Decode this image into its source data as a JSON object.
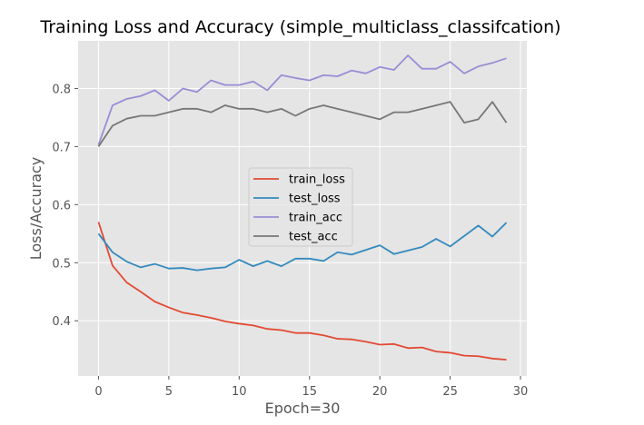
{
  "chart_data": {
    "type": "line",
    "title": "Training Loss and Accuracy (simple_multiclass_classifcation)",
    "xlabel": "Epoch=30",
    "ylabel": "Loss/Accuracy",
    "xlim": [
      -1.45,
      30.45
    ],
    "ylim": [
      0.305,
      0.882
    ],
    "xticks": [
      0,
      5,
      10,
      15,
      20,
      25,
      30
    ],
    "yticks": [
      0.4,
      0.5,
      0.6,
      0.7,
      0.8
    ],
    "grid": true,
    "legend_position": "center",
    "x": [
      0,
      1,
      2,
      3,
      4,
      5,
      6,
      7,
      8,
      9,
      10,
      11,
      12,
      13,
      14,
      15,
      16,
      17,
      18,
      19,
      20,
      21,
      22,
      23,
      24,
      25,
      26,
      27,
      28,
      29
    ],
    "series": [
      {
        "name": "train_loss",
        "color": "#e24a33",
        "values": [
          0.57,
          0.495,
          0.466,
          0.45,
          0.433,
          0.423,
          0.414,
          0.41,
          0.405,
          0.399,
          0.395,
          0.392,
          0.386,
          0.384,
          0.379,
          0.379,
          0.375,
          0.369,
          0.368,
          0.364,
          0.359,
          0.36,
          0.353,
          0.354,
          0.347,
          0.345,
          0.34,
          0.339,
          0.335,
          0.333
        ]
      },
      {
        "name": "test_loss",
        "color": "#348abd",
        "values": [
          0.55,
          0.518,
          0.502,
          0.492,
          0.498,
          0.49,
          0.491,
          0.487,
          0.49,
          0.492,
          0.505,
          0.494,
          0.503,
          0.494,
          0.507,
          0.507,
          0.503,
          0.518,
          0.514,
          0.522,
          0.53,
          0.515,
          0.521,
          0.527,
          0.541,
          0.528,
          0.546,
          0.564,
          0.545,
          0.569
        ]
      },
      {
        "name": "train_acc",
        "color": "#988ed5",
        "values": [
          0.703,
          0.771,
          0.782,
          0.787,
          0.797,
          0.779,
          0.8,
          0.794,
          0.814,
          0.806,
          0.806,
          0.812,
          0.797,
          0.823,
          0.818,
          0.814,
          0.823,
          0.821,
          0.831,
          0.826,
          0.837,
          0.832,
          0.857,
          0.834,
          0.834,
          0.846,
          0.826,
          0.838,
          0.844,
          0.852
        ]
      },
      {
        "name": "test_acc",
        "color": "#777777",
        "values": [
          0.7,
          0.736,
          0.748,
          0.753,
          0.753,
          0.759,
          0.765,
          0.765,
          0.759,
          0.771,
          0.765,
          0.765,
          0.759,
          0.765,
          0.753,
          0.765,
          0.771,
          0.765,
          0.759,
          0.753,
          0.747,
          0.759,
          0.759,
          0.765,
          0.771,
          0.777,
          0.741,
          0.747,
          0.777,
          0.741
        ]
      }
    ]
  }
}
